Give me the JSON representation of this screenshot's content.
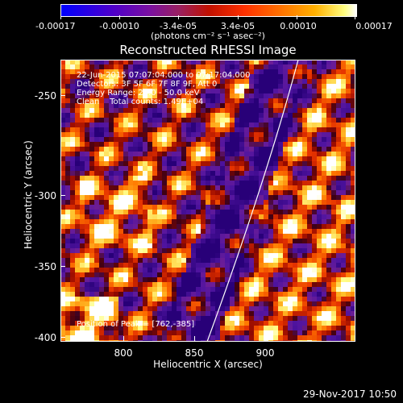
{
  "colorbar": {
    "tick_labels": [
      "-0.00017",
      "-0.00010",
      "-3.4e-05",
      "3.4e-05",
      "0.00010",
      "0.00017"
    ],
    "units": "(photons cm⁻² s⁻¹ asec⁻²)"
  },
  "title": "Reconstructed RHESSI Image",
  "annotations": {
    "time_range": "22-Jun-2015 07:07:04.000 to 07:17:04.000",
    "detectors": "Detectors: 3F 5F 6F 7F 8F 9F, Att 0",
    "energy_range": "Energy Range: 25.0 - 50.0 keV",
    "clean_counts": "Clean    Total counts: 1.49E+04",
    "peak_position": "Position of Peak = [762,-385]"
  },
  "axes": {
    "xlabel": "Heliocentric X (arcsec)",
    "ylabel": "Heliocentric Y (arcsec)",
    "x_ticks": [
      "800",
      "850",
      "900"
    ],
    "y_ticks": [
      "-250",
      "-300",
      "-350",
      "-400"
    ],
    "xlim": [
      758,
      950
    ],
    "ylim": [
      -402,
      -222
    ]
  },
  "footer": {
    "date": "29-Nov-2017 10:50"
  },
  "colors": {
    "background": "#000000",
    "limb_line": "#ffffff"
  }
}
